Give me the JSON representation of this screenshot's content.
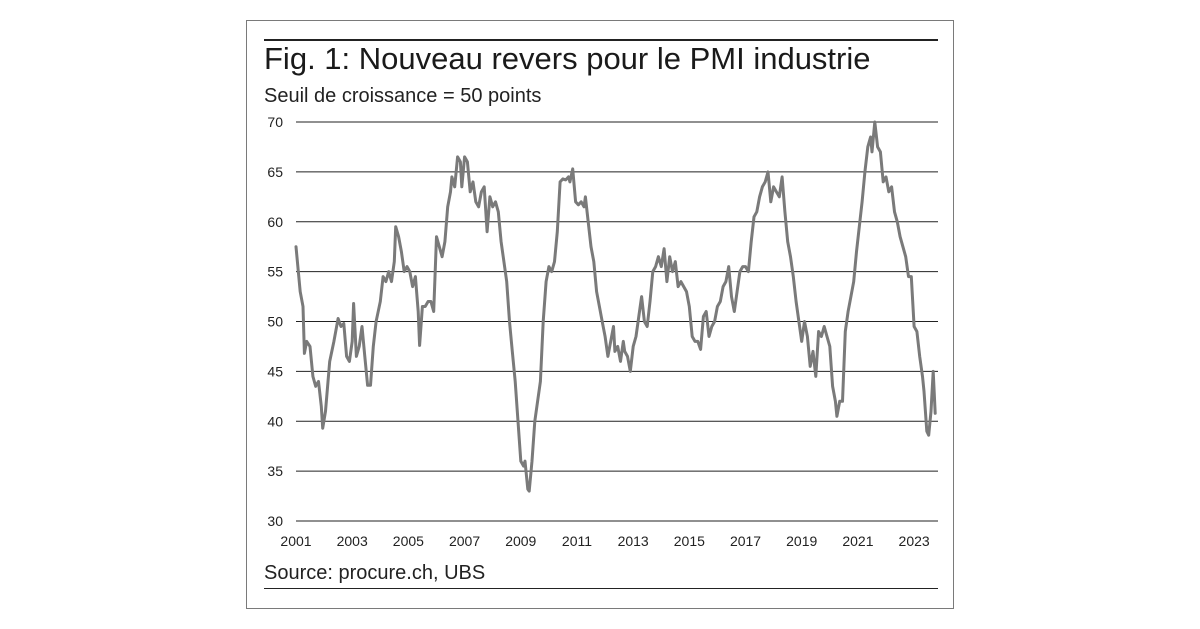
{
  "title": "Fig. 1: Nouveau revers pour le PMI industrie",
  "subtitle": "Seuil de croissance = 50 points",
  "source": "Source: procure.ch, UBS",
  "colors": {
    "line": "#7a7a7a",
    "grid": "#222222",
    "frame": "#7a7a7a"
  },
  "chart_data": {
    "type": "line",
    "title": "Fig. 1: Nouveau revers pour le PMI industrie",
    "subtitle": "Seuil de croissance = 50 points",
    "xlabel": "",
    "ylabel": "",
    "xlim": [
      2001.0,
      2023.85
    ],
    "ylim": [
      30,
      70
    ],
    "yticks": [
      "30",
      "35",
      "40",
      "45",
      "50",
      "55",
      "60",
      "65",
      "70"
    ],
    "xticks": [
      "2001",
      "2003",
      "2005",
      "2007",
      "2009",
      "2011",
      "2013",
      "2015",
      "2017",
      "2019",
      "2021",
      "2023"
    ],
    "grid": "horizontal",
    "series": [
      {
        "values": [
          [
            2001.0,
            57.5
          ],
          [
            2001.15,
            53.0
          ],
          [
            2001.25,
            51.5
          ],
          [
            2001.3,
            46.8
          ],
          [
            2001.38,
            48.0
          ],
          [
            2001.5,
            47.5
          ],
          [
            2001.6,
            44.5
          ],
          [
            2001.7,
            43.5
          ],
          [
            2001.8,
            44.0
          ],
          [
            2001.9,
            41.5
          ],
          [
            2001.95,
            39.3
          ],
          [
            2002.05,
            41.0
          ],
          [
            2002.2,
            46.0
          ],
          [
            2002.35,
            48.0
          ],
          [
            2002.5,
            50.3
          ],
          [
            2002.6,
            49.5
          ],
          [
            2002.7,
            49.8
          ],
          [
            2002.8,
            46.5
          ],
          [
            2002.9,
            46.0
          ],
          [
            2003.0,
            48.0
          ],
          [
            2003.05,
            51.8
          ],
          [
            2003.15,
            46.5
          ],
          [
            2003.25,
            47.5
          ],
          [
            2003.35,
            49.5
          ],
          [
            2003.45,
            46.5
          ],
          [
            2003.55,
            43.6
          ],
          [
            2003.65,
            43.6
          ],
          [
            2003.75,
            47.5
          ],
          [
            2003.85,
            50.0
          ],
          [
            2004.0,
            52.0
          ],
          [
            2004.1,
            54.5
          ],
          [
            2004.2,
            54.0
          ],
          [
            2004.3,
            55.0
          ],
          [
            2004.4,
            54.0
          ],
          [
            2004.5,
            56.0
          ],
          [
            2004.55,
            59.5
          ],
          [
            2004.65,
            58.5
          ],
          [
            2004.75,
            57.0
          ],
          [
            2004.85,
            55.0
          ],
          [
            2004.95,
            55.5
          ],
          [
            2005.05,
            55.0
          ],
          [
            2005.15,
            53.5
          ],
          [
            2005.25,
            54.5
          ],
          [
            2005.35,
            51.0
          ],
          [
            2005.4,
            47.6
          ],
          [
            2005.5,
            51.5
          ],
          [
            2005.6,
            51.5
          ],
          [
            2005.7,
            52.0
          ],
          [
            2005.8,
            52.0
          ],
          [
            2005.9,
            51.0
          ],
          [
            2006.0,
            58.5
          ],
          [
            2006.1,
            57.5
          ],
          [
            2006.2,
            56.5
          ],
          [
            2006.3,
            58.0
          ],
          [
            2006.4,
            61.5
          ],
          [
            2006.5,
            63.0
          ],
          [
            2006.55,
            64.5
          ],
          [
            2006.65,
            63.5
          ],
          [
            2006.75,
            66.5
          ],
          [
            2006.85,
            66.0
          ],
          [
            2006.9,
            63.5
          ],
          [
            2007.0,
            66.5
          ],
          [
            2007.1,
            66.0
          ],
          [
            2007.2,
            63.0
          ],
          [
            2007.3,
            64.0
          ],
          [
            2007.4,
            62.0
          ],
          [
            2007.5,
            61.5
          ],
          [
            2007.6,
            63.0
          ],
          [
            2007.7,
            63.5
          ],
          [
            2007.8,
            59.0
          ],
          [
            2007.9,
            62.5
          ],
          [
            2008.0,
            61.5
          ],
          [
            2008.1,
            62.0
          ],
          [
            2008.2,
            61.0
          ],
          [
            2008.3,
            58.0
          ],
          [
            2008.4,
            56.0
          ],
          [
            2008.5,
            54.0
          ],
          [
            2008.6,
            50.0
          ],
          [
            2008.7,
            47.0
          ],
          [
            2008.8,
            44.0
          ],
          [
            2008.9,
            40.0
          ],
          [
            2009.0,
            36.0
          ],
          [
            2009.1,
            35.5
          ],
          [
            2009.15,
            36.0
          ],
          [
            2009.25,
            33.2
          ],
          [
            2009.3,
            33.0
          ],
          [
            2009.4,
            36.0
          ],
          [
            2009.5,
            40.0
          ],
          [
            2009.6,
            42.0
          ],
          [
            2009.7,
            44.0
          ],
          [
            2009.8,
            50.0
          ],
          [
            2009.9,
            54.0
          ],
          [
            2010.0,
            55.5
          ],
          [
            2010.1,
            55.0
          ],
          [
            2010.2,
            56.0
          ],
          [
            2010.3,
            59.0
          ],
          [
            2010.4,
            64.0
          ],
          [
            2010.5,
            64.3
          ],
          [
            2010.6,
            64.2
          ],
          [
            2010.7,
            64.5
          ],
          [
            2010.75,
            64.0
          ],
          [
            2010.85,
            65.3
          ],
          [
            2010.95,
            62.0
          ],
          [
            2011.05,
            61.7
          ],
          [
            2011.15,
            62.0
          ],
          [
            2011.25,
            61.5
          ],
          [
            2011.3,
            62.5
          ],
          [
            2011.4,
            60.0
          ],
          [
            2011.5,
            57.5
          ],
          [
            2011.6,
            56.0
          ],
          [
            2011.7,
            53.0
          ],
          [
            2011.8,
            51.5
          ],
          [
            2011.9,
            50.0
          ],
          [
            2012.0,
            48.5
          ],
          [
            2012.1,
            46.5
          ],
          [
            2012.2,
            48.0
          ],
          [
            2012.3,
            49.5
          ],
          [
            2012.35,
            47.0
          ],
          [
            2012.45,
            47.5
          ],
          [
            2012.55,
            46.0
          ],
          [
            2012.65,
            48.0
          ],
          [
            2012.7,
            47.0
          ],
          [
            2012.8,
            46.5
          ],
          [
            2012.9,
            45.0
          ],
          [
            2013.0,
            47.5
          ],
          [
            2013.1,
            48.5
          ],
          [
            2013.2,
            50.5
          ],
          [
            2013.3,
            52.5
          ],
          [
            2013.4,
            50.0
          ],
          [
            2013.5,
            49.5
          ],
          [
            2013.6,
            52.0
          ],
          [
            2013.7,
            55.0
          ],
          [
            2013.8,
            55.5
          ],
          [
            2013.9,
            56.5
          ],
          [
            2014.0,
            55.5
          ],
          [
            2014.1,
            57.3
          ],
          [
            2014.2,
            54.0
          ],
          [
            2014.3,
            56.5
          ],
          [
            2014.4,
            55.0
          ],
          [
            2014.5,
            56.0
          ],
          [
            2014.6,
            53.5
          ],
          [
            2014.7,
            54.0
          ],
          [
            2014.8,
            53.5
          ],
          [
            2014.9,
            53.0
          ],
          [
            2015.0,
            51.5
          ],
          [
            2015.1,
            48.5
          ],
          [
            2015.2,
            48.0
          ],
          [
            2015.3,
            48.0
          ],
          [
            2015.4,
            47.2
          ],
          [
            2015.5,
            50.5
          ],
          [
            2015.6,
            51.0
          ],
          [
            2015.7,
            48.5
          ],
          [
            2015.8,
            49.5
          ],
          [
            2015.9,
            50.0
          ],
          [
            2016.0,
            51.5
          ],
          [
            2016.1,
            52.0
          ],
          [
            2016.2,
            53.5
          ],
          [
            2016.3,
            54.0
          ],
          [
            2016.4,
            55.5
          ],
          [
            2016.5,
            52.5
          ],
          [
            2016.6,
            51.0
          ],
          [
            2016.7,
            53.0
          ],
          [
            2016.8,
            55.0
          ],
          [
            2016.9,
            55.5
          ],
          [
            2017.0,
            55.5
          ],
          [
            2017.1,
            55.0
          ],
          [
            2017.2,
            58.0
          ],
          [
            2017.3,
            60.5
          ],
          [
            2017.4,
            61.0
          ],
          [
            2017.5,
            62.5
          ],
          [
            2017.6,
            63.5
          ],
          [
            2017.7,
            64.0
          ],
          [
            2017.8,
            65.0
          ],
          [
            2017.9,
            62.0
          ],
          [
            2018.0,
            63.5
          ],
          [
            2018.1,
            63.0
          ],
          [
            2018.2,
            62.5
          ],
          [
            2018.3,
            64.5
          ],
          [
            2018.4,
            61.0
          ],
          [
            2018.5,
            58.0
          ],
          [
            2018.6,
            56.5
          ],
          [
            2018.7,
            54.5
          ],
          [
            2018.8,
            52.0
          ],
          [
            2018.9,
            50.0
          ],
          [
            2019.0,
            48.0
          ],
          [
            2019.1,
            50.0
          ],
          [
            2019.2,
            48.5
          ],
          [
            2019.3,
            45.5
          ],
          [
            2019.4,
            47.0
          ],
          [
            2019.5,
            44.5
          ],
          [
            2019.6,
            49.0
          ],
          [
            2019.7,
            48.5
          ],
          [
            2019.8,
            49.5
          ],
          [
            2019.9,
            48.5
          ],
          [
            2020.0,
            47.5
          ],
          [
            2020.1,
            43.5
          ],
          [
            2020.2,
            42.0
          ],
          [
            2020.25,
            40.5
          ],
          [
            2020.35,
            42.0
          ],
          [
            2020.45,
            42.0
          ],
          [
            2020.55,
            49.0
          ],
          [
            2020.65,
            51.0
          ],
          [
            2020.75,
            52.5
          ],
          [
            2020.85,
            54.0
          ],
          [
            2020.95,
            57.0
          ],
          [
            2021.05,
            59.5
          ],
          [
            2021.15,
            62.0
          ],
          [
            2021.25,
            65.0
          ],
          [
            2021.35,
            67.5
          ],
          [
            2021.45,
            68.5
          ],
          [
            2021.5,
            67.0
          ],
          [
            2021.6,
            70.0
          ],
          [
            2021.7,
            67.5
          ],
          [
            2021.8,
            67.0
          ],
          [
            2021.9,
            64.0
          ],
          [
            2022.0,
            64.5
          ],
          [
            2022.1,
            63.0
          ],
          [
            2022.2,
            63.5
          ],
          [
            2022.3,
            61.0
          ],
          [
            2022.4,
            60.0
          ],
          [
            2022.5,
            58.5
          ],
          [
            2022.6,
            57.5
          ],
          [
            2022.7,
            56.5
          ],
          [
            2022.8,
            54.5
          ],
          [
            2022.9,
            54.5
          ],
          [
            2022.95,
            52.0
          ],
          [
            2023.0,
            49.5
          ],
          [
            2023.1,
            49.0
          ],
          [
            2023.2,
            46.5
          ],
          [
            2023.3,
            44.5
          ],
          [
            2023.35,
            43.0
          ],
          [
            2023.45,
            39.0
          ],
          [
            2023.52,
            38.6
          ],
          [
            2023.6,
            41.0
          ],
          [
            2023.68,
            45.0
          ],
          [
            2023.75,
            40.8
          ]
        ]
      }
    ]
  }
}
